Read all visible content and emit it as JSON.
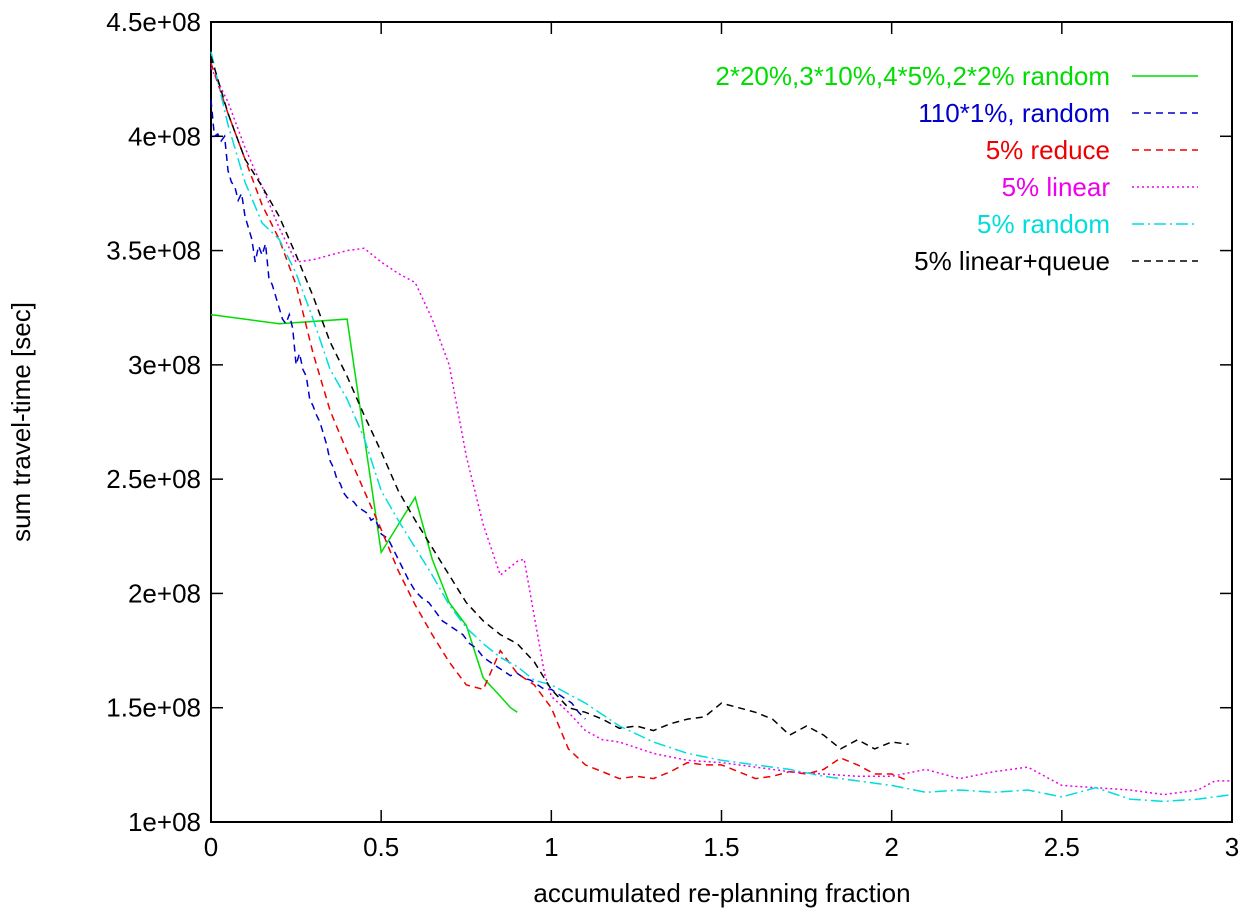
{
  "chart_data": {
    "type": "line",
    "xlabel": "accumulated re-planning fraction",
    "ylabel": "sum travel-time [sec]",
    "xlim": [
      0,
      3
    ],
    "ylim": [
      100000000,
      450000000
    ],
    "x_ticks": [
      {
        "value": 0,
        "label": "0"
      },
      {
        "value": 0.5,
        "label": "0.5"
      },
      {
        "value": 1,
        "label": "1"
      },
      {
        "value": 1.5,
        "label": "1.5"
      },
      {
        "value": 2,
        "label": "2"
      },
      {
        "value": 2.5,
        "label": "2.5"
      },
      {
        "value": 3,
        "label": "3"
      }
    ],
    "y_ticks": [
      {
        "value": 100000000,
        "label": "1e+08"
      },
      {
        "value": 150000000,
        "label": "1.5e+08"
      },
      {
        "value": 200000000,
        "label": "2e+08"
      },
      {
        "value": 250000000,
        "label": "2.5e+08"
      },
      {
        "value": 300000000,
        "label": "3e+08"
      },
      {
        "value": 350000000,
        "label": "3.5e+08"
      },
      {
        "value": 400000000,
        "label": "4e+08"
      },
      {
        "value": 450000000,
        "label": "4.5e+08"
      }
    ],
    "grid": false,
    "legend_position": "top-right",
    "series": [
      {
        "name": "2*20%,3*10%,4*5%,2*2% random",
        "color": "#00dd00",
        "dash": "solid",
        "x": [
          0,
          0.2,
          0.4,
          0.5,
          0.6,
          0.65,
          0.7,
          0.75,
          0.8,
          0.85,
          0.88,
          0.9
        ],
        "y": [
          322000000,
          318000000,
          320000000,
          218000000,
          242000000,
          215000000,
          196000000,
          186000000,
          163000000,
          155000000,
          150000000,
          148000000
        ]
      },
      {
        "name": "110*1%, random",
        "color": "#0000cc",
        "dash": "dashed",
        "x": [
          0,
          0.01,
          0.02,
          0.03,
          0.04,
          0.05,
          0.06,
          0.07,
          0.08,
          0.09,
          0.1,
          0.11,
          0.12,
          0.13,
          0.14,
          0.15,
          0.16,
          0.17,
          0.18,
          0.19,
          0.2,
          0.21,
          0.22,
          0.23,
          0.24,
          0.25,
          0.26,
          0.27,
          0.28,
          0.29,
          0.3,
          0.31,
          0.32,
          0.33,
          0.34,
          0.35,
          0.36,
          0.37,
          0.38,
          0.39,
          0.4,
          0.41,
          0.42,
          0.43,
          0.44,
          0.45,
          0.46,
          0.47,
          0.48,
          0.49,
          0.5,
          0.52,
          0.54,
          0.56,
          0.58,
          0.6,
          0.62,
          0.64,
          0.66,
          0.68,
          0.7,
          0.72,
          0.74,
          0.76,
          0.78,
          0.8,
          0.82,
          0.84,
          0.86,
          0.88,
          0.9,
          0.92,
          0.94,
          0.96,
          0.98,
          1.0,
          1.02,
          1.04,
          1.06,
          1.08,
          1.1
        ],
        "y": [
          416000000,
          400000000,
          401000000,
          398000000,
          400000000,
          385000000,
          380000000,
          378000000,
          372000000,
          375000000,
          365000000,
          360000000,
          355000000,
          345000000,
          352000000,
          348000000,
          353000000,
          338000000,
          335000000,
          330000000,
          325000000,
          320000000,
          318000000,
          322000000,
          316000000,
          300000000,
          305000000,
          298000000,
          295000000,
          285000000,
          282000000,
          278000000,
          275000000,
          270000000,
          265000000,
          258000000,
          255000000,
          250000000,
          248000000,
          244000000,
          242000000,
          241000000,
          240000000,
          238000000,
          237000000,
          236000000,
          235000000,
          232000000,
          233000000,
          230000000,
          226000000,
          224000000,
          218000000,
          212000000,
          206000000,
          201000000,
          198000000,
          196000000,
          192000000,
          188000000,
          186000000,
          184000000,
          182000000,
          178000000,
          176000000,
          172000000,
          170000000,
          168000000,
          166000000,
          164000000,
          165000000,
          163000000,
          162000000,
          160000000,
          158000000,
          158000000,
          156000000,
          154000000,
          152000000,
          148000000,
          145000000
        ]
      },
      {
        "name": "5% reduce",
        "color": "#ee0000",
        "dash": "dashed",
        "x": [
          0,
          0.05,
          0.1,
          0.15,
          0.2,
          0.25,
          0.3,
          0.35,
          0.4,
          0.45,
          0.5,
          0.55,
          0.6,
          0.65,
          0.7,
          0.75,
          0.8,
          0.85,
          0.9,
          0.95,
          1.0,
          1.05,
          1.1,
          1.15,
          1.2,
          1.25,
          1.3,
          1.35,
          1.4,
          1.45,
          1.5,
          1.55,
          1.6,
          1.65,
          1.7,
          1.75,
          1.8,
          1.85,
          1.9,
          1.95,
          2.0,
          2.05
        ],
        "y": [
          432000000,
          410000000,
          390000000,
          370000000,
          355000000,
          335000000,
          305000000,
          280000000,
          262000000,
          245000000,
          228000000,
          210000000,
          195000000,
          182000000,
          170000000,
          160000000,
          158000000,
          175000000,
          165000000,
          160000000,
          150000000,
          132000000,
          125000000,
          122000000,
          119000000,
          120000000,
          119000000,
          122000000,
          126000000,
          125000000,
          125000000,
          122000000,
          119000000,
          120000000,
          122000000,
          121000000,
          123000000,
          128000000,
          125000000,
          121000000,
          121000000,
          118000000
        ]
      },
      {
        "name": "5% linear",
        "color": "#ee00ee",
        "dash": "dotted",
        "x": [
          0,
          0.05,
          0.1,
          0.15,
          0.2,
          0.25,
          0.3,
          0.35,
          0.4,
          0.45,
          0.5,
          0.55,
          0.6,
          0.65,
          0.7,
          0.75,
          0.8,
          0.85,
          0.9,
          0.92,
          0.95,
          0.98,
          1.0,
          1.05,
          1.1,
          1.15,
          1.2,
          1.3,
          1.4,
          1.5,
          1.6,
          1.7,
          1.8,
          1.9,
          2.0,
          2.1,
          2.2,
          2.3,
          2.4,
          2.5,
          2.6,
          2.7,
          2.8,
          2.9,
          2.95,
          3.0
        ],
        "y": [
          430000000,
          415000000,
          395000000,
          378000000,
          360000000,
          345000000,
          346000000,
          348000000,
          350000000,
          351000000,
          345000000,
          340000000,
          336000000,
          320000000,
          300000000,
          260000000,
          230000000,
          208000000,
          214000000,
          215000000,
          190000000,
          165000000,
          155000000,
          148000000,
          140000000,
          136000000,
          135000000,
          130000000,
          127000000,
          126000000,
          124000000,
          122000000,
          121000000,
          120000000,
          120000000,
          123000000,
          119000000,
          122000000,
          124000000,
          116000000,
          115000000,
          114000000,
          112000000,
          114000000,
          118000000,
          118000000
        ]
      },
      {
        "name": "5% random",
        "color": "#00dddd",
        "dash": "dash-dot",
        "x": [
          0,
          0.05,
          0.1,
          0.15,
          0.2,
          0.25,
          0.3,
          0.35,
          0.4,
          0.45,
          0.5,
          0.55,
          0.6,
          0.65,
          0.7,
          0.75,
          0.8,
          0.85,
          0.9,
          0.95,
          1.0,
          1.1,
          1.2,
          1.3,
          1.4,
          1.5,
          1.6,
          1.7,
          1.8,
          1.9,
          2.0,
          2.1,
          2.2,
          2.3,
          2.4,
          2.5,
          2.6,
          2.7,
          2.8,
          2.9,
          3.0
        ],
        "y": [
          437000000,
          405000000,
          380000000,
          362000000,
          355000000,
          340000000,
          320000000,
          298000000,
          285000000,
          268000000,
          245000000,
          232000000,
          220000000,
          208000000,
          195000000,
          185000000,
          178000000,
          172000000,
          168000000,
          162000000,
          160000000,
          152000000,
          142000000,
          135000000,
          130000000,
          127000000,
          125000000,
          123000000,
          120000000,
          118000000,
          116000000,
          113000000,
          114000000,
          113000000,
          114000000,
          111000000,
          115000000,
          110000000,
          109000000,
          110000000,
          112000000
        ]
      },
      {
        "name": "5% linear+queue",
        "color": "#000000",
        "dash": "dashed",
        "x": [
          0,
          0.05,
          0.1,
          0.15,
          0.2,
          0.25,
          0.3,
          0.35,
          0.4,
          0.45,
          0.5,
          0.55,
          0.6,
          0.65,
          0.7,
          0.75,
          0.8,
          0.85,
          0.9,
          0.95,
          1.0,
          1.05,
          1.1,
          1.15,
          1.2,
          1.25,
          1.3,
          1.35,
          1.4,
          1.45,
          1.5,
          1.55,
          1.6,
          1.65,
          1.7,
          1.75,
          1.8,
          1.85,
          1.9,
          1.95,
          2.0,
          2.05
        ],
        "y": [
          435000000,
          410000000,
          390000000,
          378000000,
          365000000,
          348000000,
          330000000,
          310000000,
          295000000,
          278000000,
          262000000,
          245000000,
          232000000,
          220000000,
          208000000,
          196000000,
          188000000,
          182000000,
          178000000,
          170000000,
          158000000,
          150000000,
          148000000,
          145000000,
          141000000,
          142000000,
          140000000,
          143000000,
          145000000,
          146000000,
          152000000,
          150000000,
          148000000,
          145000000,
          138000000,
          142000000,
          138000000,
          132000000,
          136000000,
          132000000,
          135000000,
          134000000
        ]
      }
    ]
  }
}
